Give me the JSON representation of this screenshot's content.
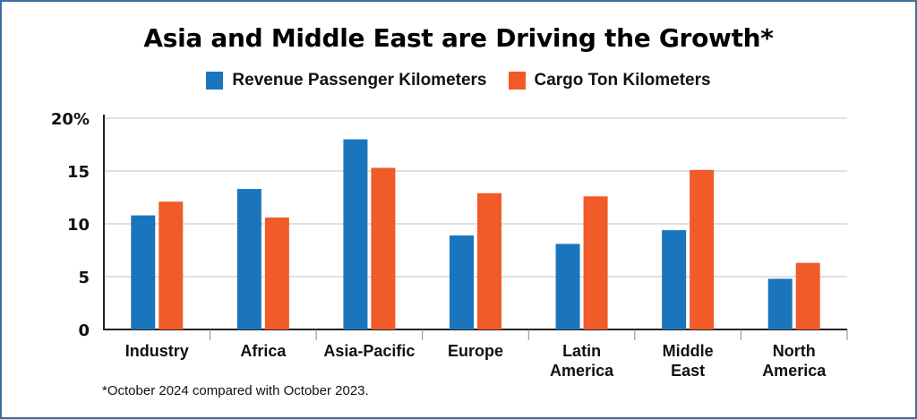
{
  "chart_data": {
    "type": "bar",
    "title": "Asia and Middle East are Driving the Growth*",
    "xlabel": "",
    "ylabel": "",
    "ylim": [
      0,
      20
    ],
    "yticks": [
      0,
      5,
      10,
      15,
      20
    ],
    "ytick_labels": [
      "0",
      "5",
      "10",
      "15",
      "20%"
    ],
    "grid": true,
    "legend_position": "top-center",
    "categories": [
      [
        "Industry"
      ],
      [
        "Africa"
      ],
      [
        "Asia-Pacific"
      ],
      [
        "Europe"
      ],
      [
        "Latin",
        "America"
      ],
      [
        "Middle",
        "East"
      ],
      [
        "North",
        "America"
      ]
    ],
    "series": [
      {
        "name": "Revenue Passenger Kilometers",
        "color": "#1b75bc",
        "values": [
          10.8,
          13.3,
          18.0,
          8.9,
          8.1,
          9.4,
          4.8
        ]
      },
      {
        "name": "Cargo Ton Kilometers",
        "color": "#f15a29",
        "values": [
          12.1,
          10.6,
          15.3,
          12.9,
          12.6,
          15.1,
          6.3
        ]
      }
    ],
    "footnote": "*October 2024 compared with October 2023."
  }
}
